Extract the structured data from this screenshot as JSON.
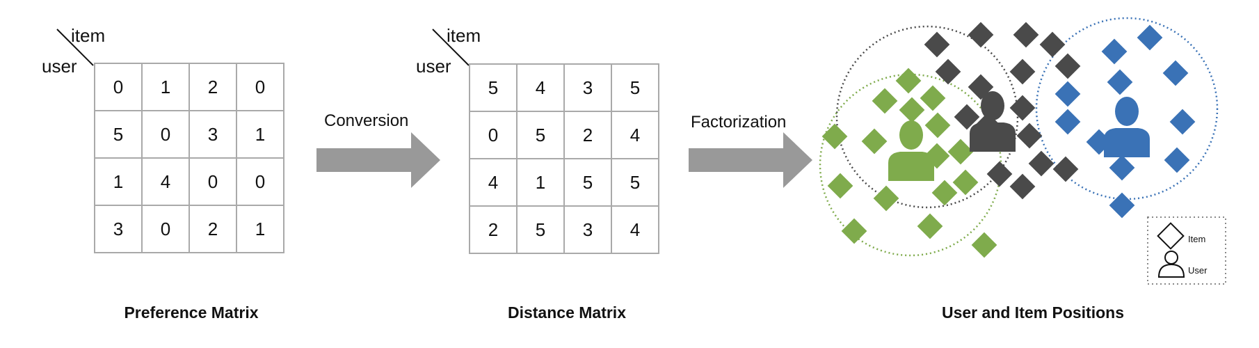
{
  "preference": {
    "col_label": "item",
    "row_label": "user",
    "rows": [
      [
        0,
        1,
        2,
        0
      ],
      [
        5,
        0,
        3,
        1
      ],
      [
        1,
        4,
        0,
        0
      ],
      [
        3,
        0,
        2,
        1
      ]
    ],
    "caption": "Preference Matrix"
  },
  "conversion_label": "Conversion",
  "distance": {
    "col_label": "item",
    "row_label": "user",
    "rows": [
      [
        5,
        4,
        3,
        5
      ],
      [
        0,
        5,
        2,
        4
      ],
      [
        4,
        1,
        5,
        5
      ],
      [
        2,
        5,
        3,
        4
      ]
    ],
    "caption": "Distance Matrix"
  },
  "factorization_label": "Factorization",
  "positions": {
    "caption": "User and Item Positions",
    "colors": {
      "green": "#7fab4c",
      "dark": "#4a4a4a",
      "blue": "#3a72b6"
    },
    "legend": {
      "item": "Item",
      "user": "User"
    }
  }
}
